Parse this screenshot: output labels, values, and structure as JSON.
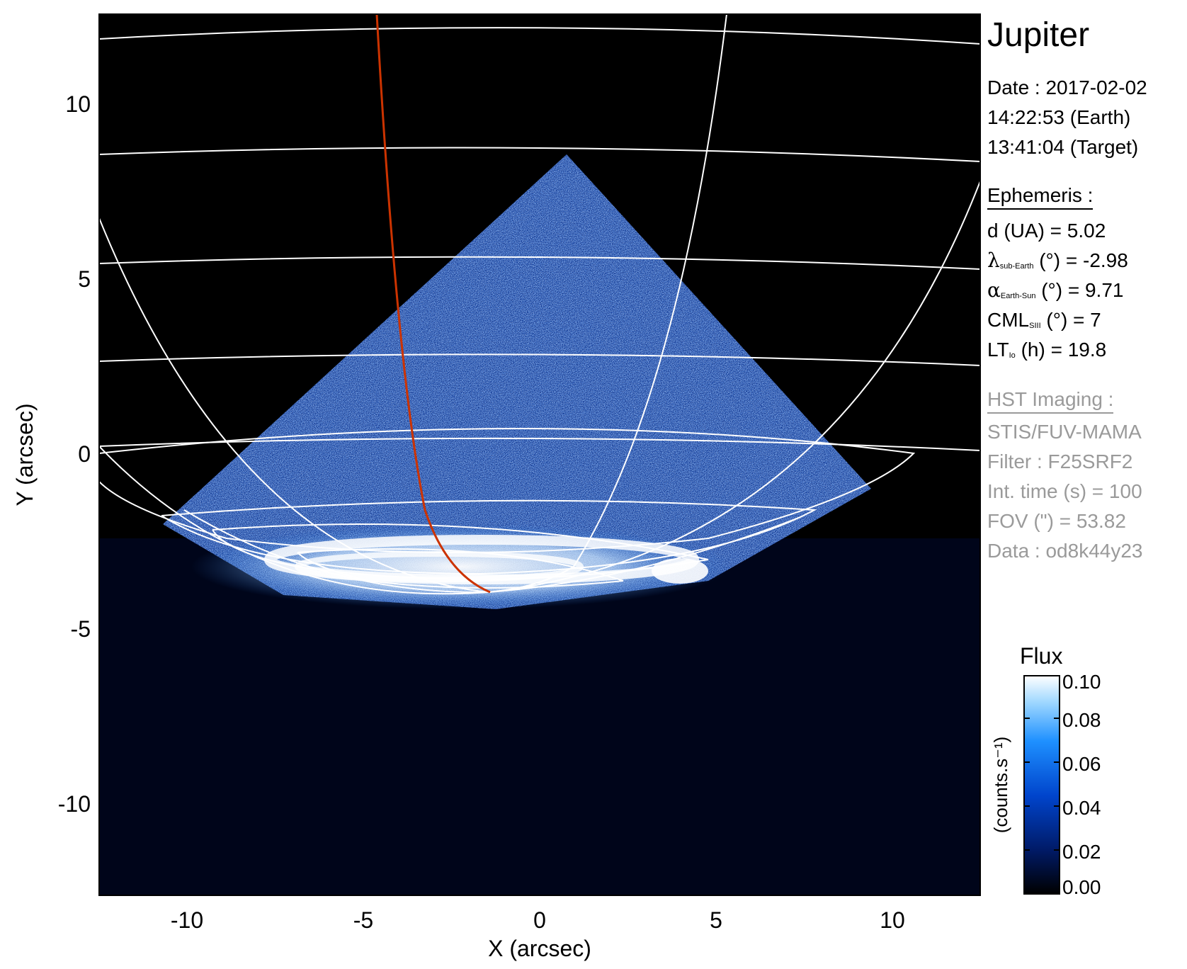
{
  "title": "Jupiter",
  "date": {
    "label": "Date : 2017-02-02",
    "earth_time": "14:22:53 (Earth)",
    "target_time": "13:41:04 (Target)"
  },
  "ephemeris": {
    "heading": "Ephemeris :",
    "distance": "d (UA)    = 5.02",
    "lat_symbol": "λ",
    "lat_sub": "sub-Earth",
    "lat_rest": " (°) = -2.98",
    "phase_symbol": "α",
    "phase_sub": "Earth-Sun",
    "phase_rest": " (°) = 9.71",
    "cml_main": "CML",
    "cml_sub": "SIII",
    "cml_rest": " (°) = 7",
    "lt_main": "LT",
    "lt_sub": "Io",
    "lt_rest": " (h) = 19.8"
  },
  "imaging": {
    "heading": "HST Imaging :",
    "instrument": "STIS/FUV-MAMA",
    "filter": "Filter : F25SRF2",
    "int_time": "Int. time (s) = 100",
    "fov": "FOV (\") = 53.82",
    "data_id": "Data : od8k44y23"
  },
  "axes": {
    "xlabel": "X (arcsec)",
    "ylabel": "Y (arcsec)",
    "xlim": [
      -12.5,
      12.5
    ],
    "ylim": [
      -12.5,
      12.5
    ],
    "xticks": [
      "-10",
      "-5",
      "0",
      "5",
      "10"
    ],
    "yticks": [
      "10",
      "5",
      "0",
      "-5",
      "-10"
    ]
  },
  "colorbar": {
    "title": "Flux",
    "label": "(counts.s⁻¹)",
    "ticks": [
      "0.10",
      "0.08",
      "0.06",
      "0.04",
      "0.02",
      "0.00"
    ],
    "range": [
      0.0,
      0.1
    ],
    "colors": [
      "#000000",
      "#001a66",
      "#0044cc",
      "#1e90ff",
      "#a0d8ff",
      "#ffffff"
    ]
  },
  "colors": {
    "background": "#000000",
    "grid": "#ffffff",
    "meridian_highlight": "#cc3300"
  }
}
